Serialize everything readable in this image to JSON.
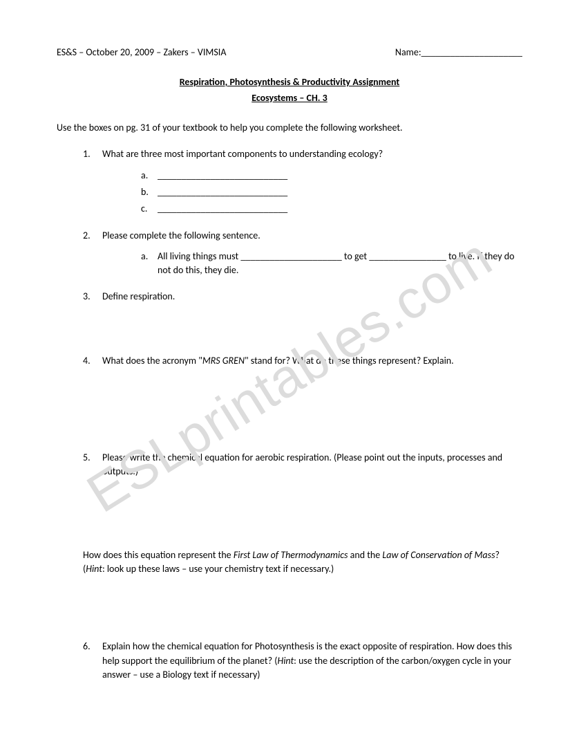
{
  "header": {
    "left": "ES&S – October 20, 2009 – Zakers – VIMSIA",
    "name_label": "Name:",
    "name_blank": "_____________________"
  },
  "title": {
    "line1": "Respiration, Photosynthesis & Productivity Assignment",
    "line2": "Ecosystems – CH. 3"
  },
  "instruction": "Use the boxes on pg. 31 of your textbook to help you complete the following worksheet.",
  "q": {
    "n1": "1.",
    "t1": "What are three most important components to understanding ecology?",
    "s1a_l": "a.",
    "s1a_t": "___________________________",
    "s1b_l": "b.",
    "s1b_t": "___________________________",
    "s1c_l": "c.",
    "s1c_t": "___________________________",
    "n2": "2.",
    "t2": "Please complete the following sentence.",
    "s2a_l": "a.",
    "s2a_t": "All living things must _____________________ to get ________________ to live.  If they do not do this, they die.",
    "n3": "3.",
    "t3": "Define respiration.",
    "n4": "4.",
    "t4_pre": "What does the acronym \"",
    "t4_ital": "MRS GREN",
    "t4_post": "\" stand for?  What do these things represent? Explain.",
    "n5": "5.",
    "t5": "Please write the chemical equation for aerobic respiration.  (Please point out the inputs, processes and outputs.)",
    "follow_pre": "How does this equation represent the ",
    "follow_i1": "First Law of Thermodynamics",
    "follow_mid": " and the ",
    "follow_i2": "Law of Conservation of Mass",
    "follow_post1": "? (",
    "follow_hint": "Hint",
    "follow_post2": ": look up these laws – use your chemistry text if necessary.)",
    "n6": "6.",
    "t6_pre": "Explain how the chemical equation for Photosynthesis is the exact opposite of respiration.  How does this help support the equilibrium of the planet?  (",
    "t6_hint": "Hint",
    "t6_post": ": use the description of the carbon/oxygen cycle in your answer – use a Biology text if necessary)"
  },
  "watermark": "ESLprintables.com"
}
